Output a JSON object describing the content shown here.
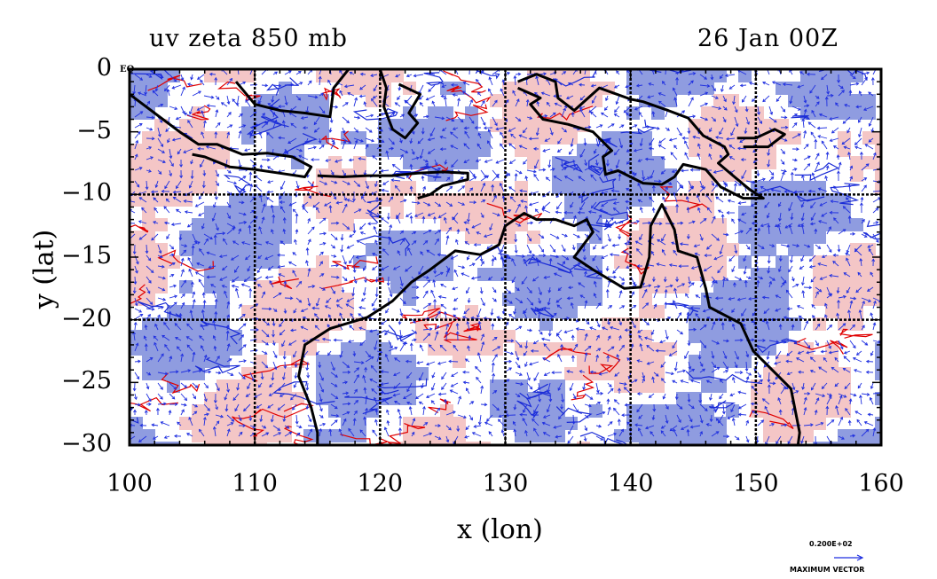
{
  "figure": {
    "title_left": "uv zeta 850 mb",
    "title_right": "26 Jan 00Z",
    "equator_label": "EQ",
    "max_vector_value": "0.200E+02",
    "max_vector_label": "MAXIMUM VECTOR"
  },
  "axes": {
    "xlabel": "x (lon)",
    "ylabel": "y (lat)",
    "x_ticks": [
      "100",
      "110",
      "120",
      "130",
      "140",
      "150",
      "160"
    ],
    "y_ticks": [
      "0",
      "−5",
      "−10",
      "−15",
      "−20",
      "−25",
      "−30"
    ],
    "x_range": [
      100,
      160
    ],
    "y_range": [
      -30,
      0
    ],
    "grid_lon": [
      110,
      120,
      130,
      140,
      150
    ],
    "grid_lat": [
      -10,
      -20
    ]
  },
  "colors": {
    "positive_fill": "#f4c6c6",
    "positive_contour": "#e00000",
    "negative_fill": "#8f9ce0",
    "negative_contour": "#1a2bd6",
    "vector": "#1f2fe0",
    "coastline": "#000000",
    "background": "#ffffff"
  },
  "map": {
    "region": "Indonesia and northern Australia",
    "vector_field": "850 mb wind (uv)",
    "shading": "relative vorticity (zeta)"
  }
}
